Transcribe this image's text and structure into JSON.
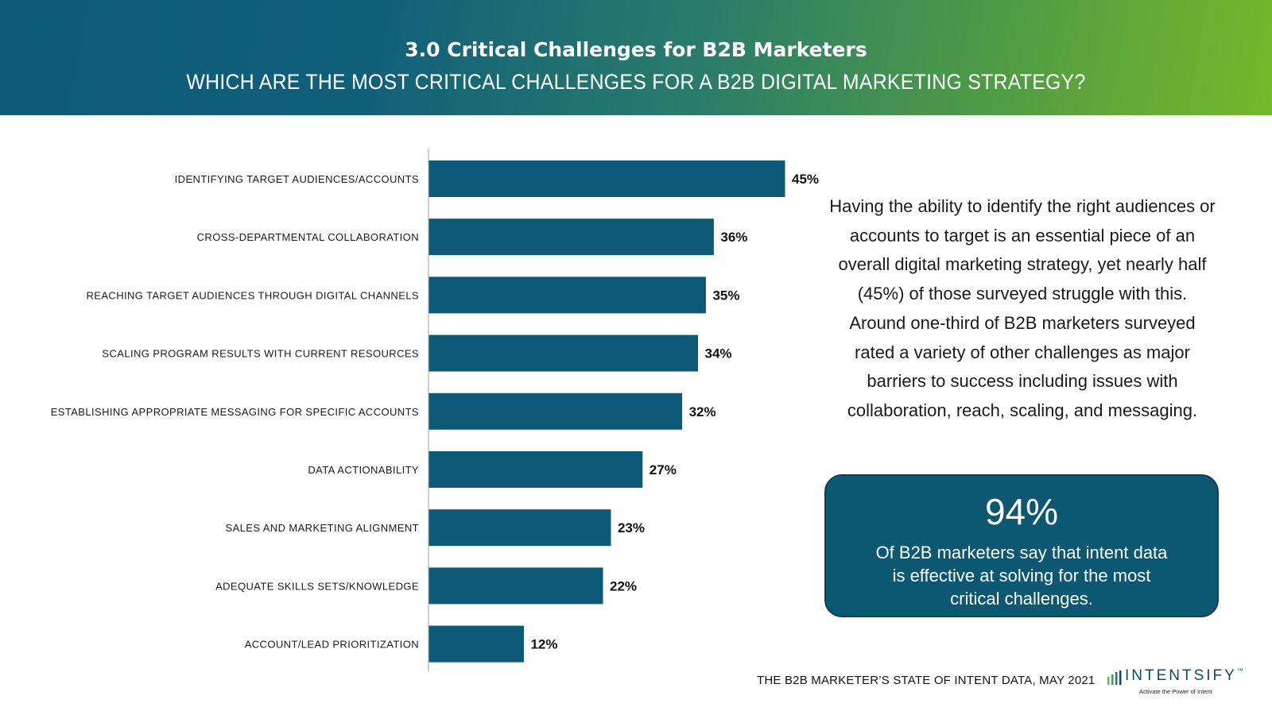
{
  "header": {
    "title": "3.0 Critical Challenges for B2B Marketers",
    "subtitle": "WHICH ARE THE MOST CRITICAL CHALLENGES FOR A B2B DIGITAL MARKETING STRATEGY?"
  },
  "chart_data": {
    "type": "bar",
    "orientation": "horizontal",
    "title": "WHICH ARE THE MOST CRITICAL CHALLENGES FOR A B2B DIGITAL MARKETING STRATEGY?",
    "xlabel": "",
    "ylabel": "",
    "xlim": [
      0,
      45
    ],
    "grid": false,
    "unit": "%",
    "categories": [
      "IDENTIFYING TARGET AUDIENCES/ACCOUNTS",
      "CROSS-DEPARTMENTAL COLLABORATION",
      "REACHING TARGET AUDIENCES THROUGH DIGITAL CHANNELS",
      "SCALING PROGRAM RESULTS WITH CURRENT RESOURCES",
      "ESTABLISHING APPROPRIATE MESSAGING FOR SPECIFIC ACCOUNTS",
      "DATA ACTIONABILITY",
      "SALES AND MARKETING ALIGNMENT",
      "ADEQUATE SKILLS SETS/KNOWLEDGE",
      "ACCOUNT/LEAD PRIORITIZATION"
    ],
    "values": [
      45,
      36,
      35,
      34,
      32,
      27,
      23,
      22,
      12
    ],
    "value_labels": [
      "45%",
      "36%",
      "35%",
      "34%",
      "32%",
      "27%",
      "23%",
      "22%",
      "12%"
    ],
    "bar_color": "#0c5a78"
  },
  "narrative": "Having the ability to identify the right audiences or accounts to target is an essential piece of an overall digital marketing strategy, yet nearly half (45%) of those surveyed struggle with this. Around one-third of B2B marketers surveyed rated a variety of other challenges as major barriers to success including issues with collaboration, reach, scaling, and messaging.",
  "stat_box": {
    "value": "94%",
    "text": "Of B2B marketers say that intent data is effective at solving for the most critical challenges."
  },
  "footer": {
    "source": "THE B2B MARKETER’S STATE OF INTENT DATA, MAY 2021"
  },
  "logo": {
    "name": "INTENTSIFY",
    "trademark": "™",
    "tagline": "Activate the Power of Intent",
    "colors": [
      "#7ab829",
      "#3d9a6b",
      "#1a7a8c",
      "#0c4a66"
    ]
  },
  "colors": {
    "header_start": "#0c5a78",
    "header_end": "#76b82a",
    "bar": "#0c5a78",
    "stat_box": "#0c5872"
  }
}
